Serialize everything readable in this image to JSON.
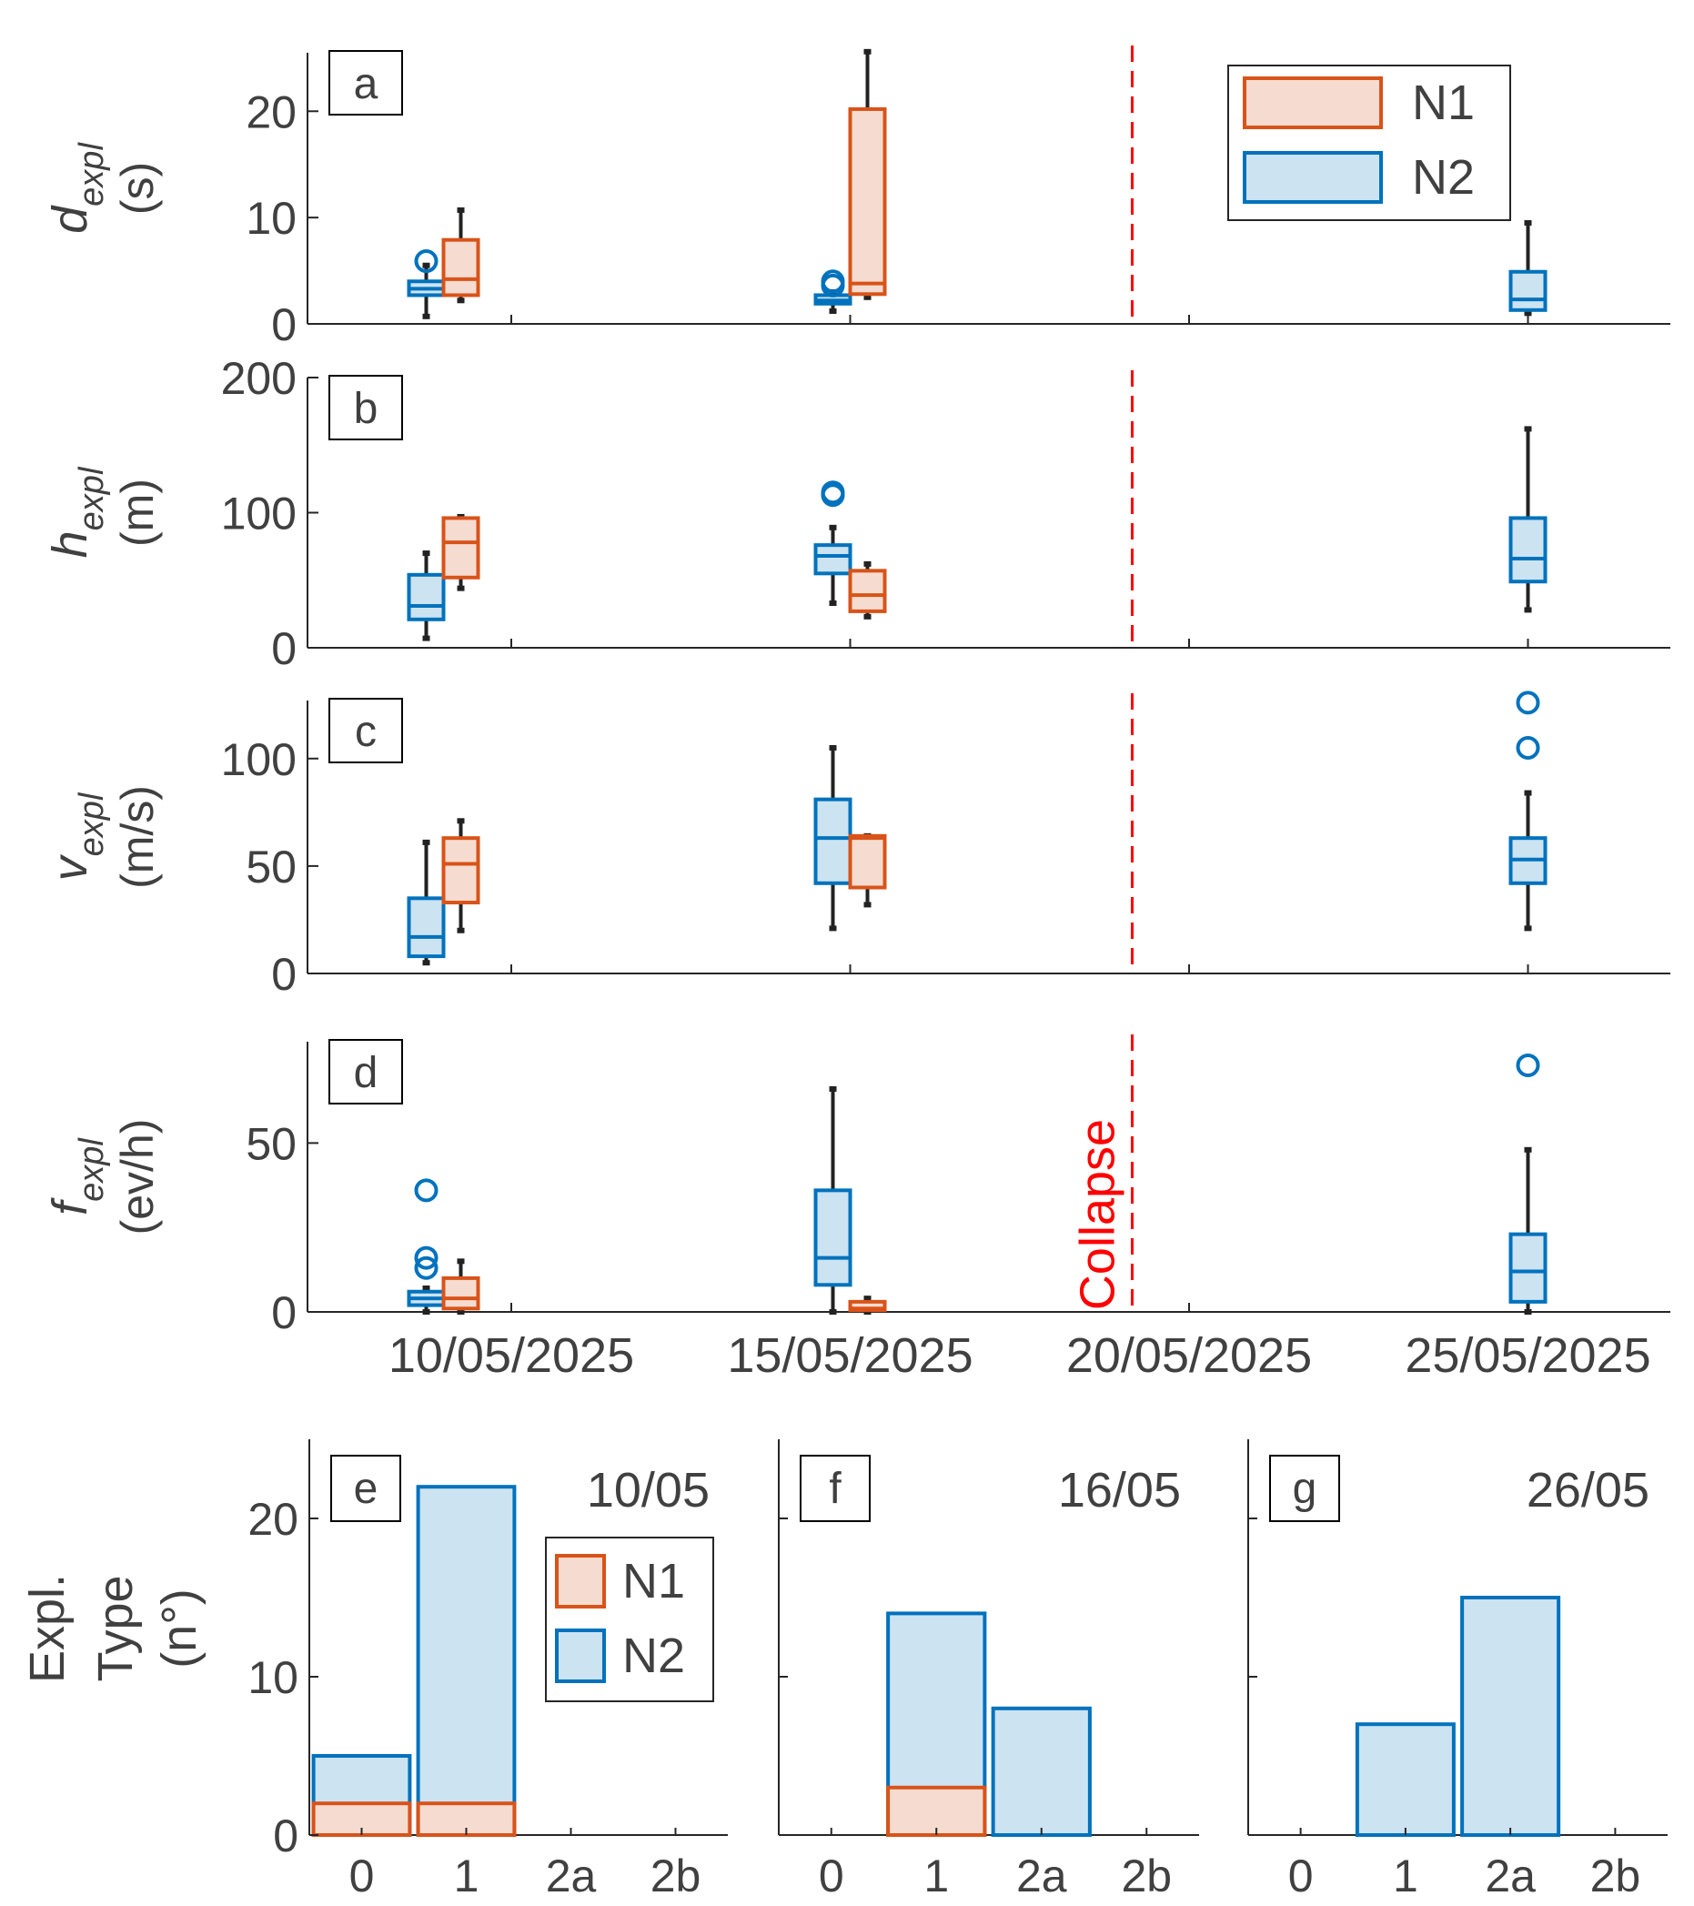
{
  "colors": {
    "n1_edge": "#D95319",
    "n1_fill": "#F6DCD0",
    "n2_edge": "#0072BD",
    "n2_fill": "#CCE3F2",
    "whisker": "#222222",
    "axis": "#262626",
    "text": "#404040",
    "collapse": "#FF0000"
  },
  "icons": {
    "outlier": "circle-marker"
  },
  "chart_data": [
    {
      "type": "box",
      "panel": "a",
      "ylabel_var": "d",
      "ylabel_sub": "expl",
      "ylabel_unit": "(s)",
      "ylim": [
        0,
        25.5
      ],
      "yticks": [
        0,
        10,
        20
      ],
      "xticks": [
        "10/05/2025",
        "15/05/2025",
        "20/05/2025",
        "25/05/2025"
      ],
      "collapse_date": "19/05/2025",
      "collapse_label": "",
      "legend": {
        "items": [
          "N1",
          "N2"
        ],
        "position": "top-right"
      },
      "boxes": [
        {
          "series": "N2",
          "date": "09/05/2025",
          "min": 0.7,
          "q1": 2.7,
          "median": 3.3,
          "q3": 4.0,
          "max": 5.5,
          "outliers": [
            5.9
          ]
        },
        {
          "series": "N1",
          "date": "09/05/2025",
          "min": 2.2,
          "q1": 2.7,
          "median": 4.2,
          "q3": 7.9,
          "max": 10.7,
          "outliers": []
        },
        {
          "series": "N2",
          "date": "15/05/2025",
          "min": 1.2,
          "q1": 1.9,
          "median": 2.2,
          "q3": 2.7,
          "max": 3.0,
          "outliers": [
            3.6,
            4.0
          ]
        },
        {
          "series": "N1",
          "date": "15/05/2025",
          "min": 2.5,
          "q1": 2.8,
          "median": 3.8,
          "q3": 20.2,
          "max": 25.6,
          "outliers": []
        },
        {
          "series": "N2",
          "date": "25/05/2025",
          "min": 1.0,
          "q1": 1.3,
          "median": 2.3,
          "q3": 4.9,
          "max": 9.5,
          "outliers": []
        }
      ]
    },
    {
      "type": "box",
      "panel": "b",
      "ylabel_var": "h",
      "ylabel_sub": "expl",
      "ylabel_unit": "(m)",
      "ylim": [
        0,
        200
      ],
      "yticks": [
        0,
        100,
        200
      ],
      "xticks": [
        "10/05/2025",
        "15/05/2025",
        "20/05/2025",
        "25/05/2025"
      ],
      "collapse_date": "19/05/2025",
      "collapse_label": "",
      "boxes": [
        {
          "series": "N2",
          "date": "09/05/2025",
          "min": 7,
          "q1": 21,
          "median": 31,
          "q3": 54,
          "max": 70,
          "outliers": []
        },
        {
          "series": "N1",
          "date": "09/05/2025",
          "min": 44,
          "q1": 52,
          "median": 78,
          "q3": 96,
          "max": 97,
          "outliers": []
        },
        {
          "series": "N2",
          "date": "15/05/2025",
          "min": 33,
          "q1": 55,
          "median": 68,
          "q3": 76,
          "max": 89,
          "outliers": [
            113,
            115
          ]
        },
        {
          "series": "N1",
          "date": "15/05/2025",
          "min": 23,
          "q1": 27,
          "median": 39,
          "q3": 57,
          "max": 62,
          "outliers": []
        },
        {
          "series": "N2",
          "date": "25/05/2025",
          "min": 28,
          "q1": 49,
          "median": 66,
          "q3": 96,
          "max": 162,
          "outliers": []
        }
      ]
    },
    {
      "type": "box",
      "panel": "c",
      "ylabel_var": "v",
      "ylabel_sub": "expl",
      "ylabel_unit": "(m/s)",
      "ylim": [
        0,
        127
      ],
      "yticks": [
        0,
        50,
        100
      ],
      "xticks": [
        "10/05/2025",
        "15/05/2025",
        "20/05/2025",
        "25/05/2025"
      ],
      "collapse_date": "19/05/2025",
      "collapse_label": "",
      "boxes": [
        {
          "series": "N2",
          "date": "09/05/2025",
          "min": 5,
          "q1": 8,
          "median": 17,
          "q3": 35,
          "max": 61,
          "outliers": []
        },
        {
          "series": "N1",
          "date": "09/05/2025",
          "min": 20,
          "q1": 33,
          "median": 51,
          "q3": 63,
          "max": 71,
          "outliers": []
        },
        {
          "series": "N2",
          "date": "15/05/2025",
          "min": 21,
          "q1": 42,
          "median": 63,
          "q3": 81,
          "max": 105,
          "outliers": []
        },
        {
          "series": "N1",
          "date": "15/05/2025",
          "min": 32,
          "q1": 40,
          "median": 63,
          "q3": 64,
          "max": 64,
          "outliers": []
        },
        {
          "series": "N2",
          "date": "25/05/2025",
          "min": 21,
          "q1": 42,
          "median": 53,
          "q3": 63,
          "max": 84,
          "outliers": [
            105,
            126
          ]
        }
      ]
    },
    {
      "type": "box",
      "panel": "d",
      "ylabel_var": "f",
      "ylabel_sub": "expl",
      "ylabel_unit": "(ev/h)",
      "ylim": [
        0,
        80
      ],
      "yticks": [
        0,
        50
      ],
      "xticks": [
        "10/05/2025",
        "15/05/2025",
        "20/05/2025",
        "25/05/2025"
      ],
      "collapse_date": "19/05/2025",
      "collapse_label": "Collapse",
      "boxes": [
        {
          "series": "N2",
          "date": "09/05/2025",
          "min": 0,
          "q1": 2,
          "median": 4,
          "q3": 6,
          "max": 7,
          "outliers": [
            13,
            16,
            36
          ]
        },
        {
          "series": "N1",
          "date": "09/05/2025",
          "min": 0,
          "q1": 1,
          "median": 4,
          "q3": 10,
          "max": 15,
          "outliers": []
        },
        {
          "series": "N2",
          "date": "15/05/2025",
          "min": 0,
          "q1": 8,
          "median": 16,
          "q3": 36,
          "max": 66,
          "outliers": []
        },
        {
          "series": "N1",
          "date": "15/05/2025",
          "min": 0,
          "q1": 0.5,
          "median": 1,
          "q3": 3,
          "max": 4,
          "outliers": []
        },
        {
          "series": "N2",
          "date": "25/05/2025",
          "min": 0,
          "q1": 3,
          "median": 12,
          "q3": 23,
          "max": 48,
          "outliers": [
            73
          ]
        }
      ]
    },
    {
      "type": "bar",
      "panel": "e",
      "date_label": "10/05",
      "ylabel": [
        "Expl.",
        "Type",
        "(n°)"
      ],
      "categories": [
        "0",
        "1",
        "2a",
        "2b"
      ],
      "ylim": [
        0,
        25
      ],
      "yticks": [
        0,
        10,
        20
      ],
      "legend": {
        "items": [
          "N1",
          "N2"
        ],
        "position": "center-right"
      },
      "series": [
        {
          "name": "N2",
          "values": [
            5,
            22,
            0,
            0
          ]
        },
        {
          "name": "N1",
          "values": [
            2,
            2,
            0,
            0
          ]
        }
      ]
    },
    {
      "type": "bar",
      "panel": "f",
      "date_label": "16/05",
      "categories": [
        "0",
        "1",
        "2a",
        "2b"
      ],
      "ylim": [
        0,
        25
      ],
      "series": [
        {
          "name": "N2",
          "values": [
            0,
            14,
            8,
            0
          ]
        },
        {
          "name": "N1",
          "values": [
            0,
            3,
            0,
            0
          ]
        }
      ]
    },
    {
      "type": "bar",
      "panel": "g",
      "date_label": "26/05",
      "categories": [
        "0",
        "1",
        "2a",
        "2b"
      ],
      "ylim": [
        0,
        25
      ],
      "series": [
        {
          "name": "N2",
          "values": [
            0,
            7,
            15,
            0
          ]
        },
        {
          "name": "N1",
          "values": [
            0,
            0,
            0,
            0
          ]
        }
      ]
    }
  ]
}
